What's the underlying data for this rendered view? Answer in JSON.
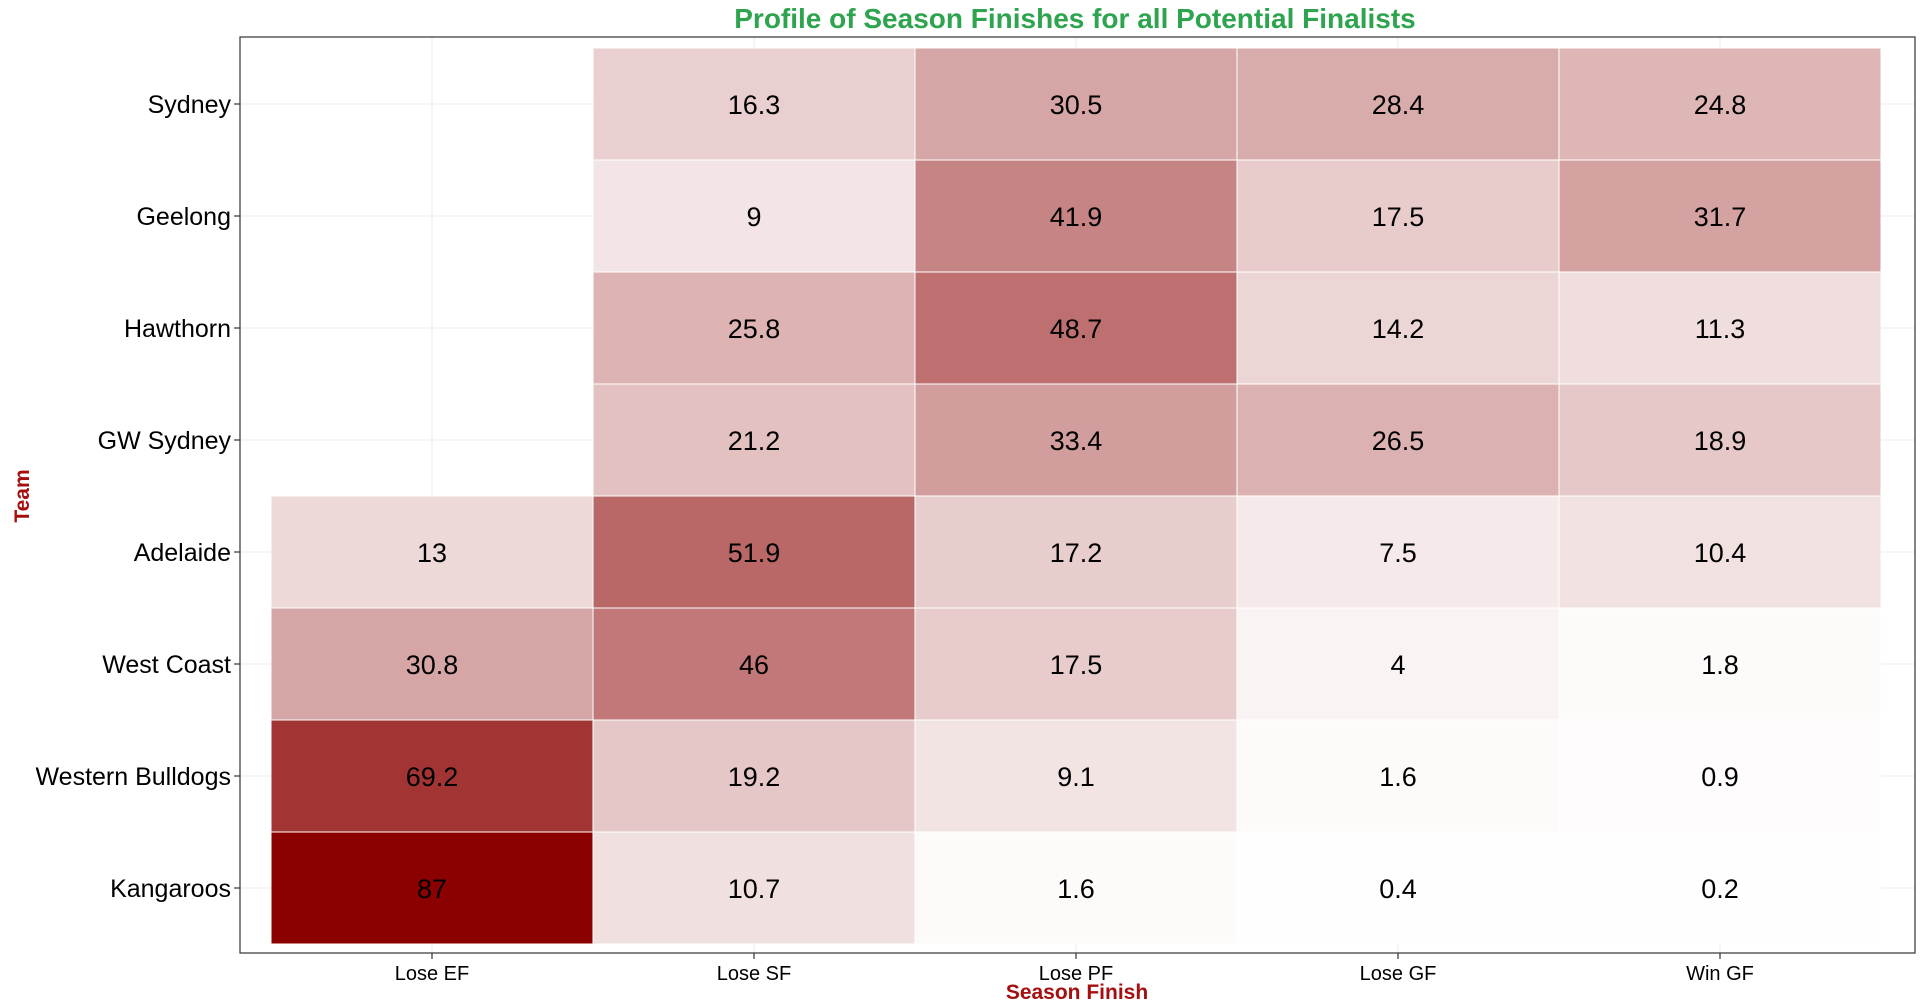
{
  "chart_data": {
    "type": "heatmap",
    "title": "Profile of Season Finishes for all Potential Finalists",
    "xlabel": "Season Finish",
    "ylabel": "Team",
    "x_categories": [
      "Lose EF",
      "Lose SF",
      "Lose PF",
      "Lose GF",
      "Win GF"
    ],
    "y_categories": [
      "Sydney",
      "Geelong",
      "Hawthorn",
      "GW Sydney",
      "Adelaide",
      "West Coast",
      "Western Bulldogs",
      "Kangaroos"
    ],
    "values": [
      [
        null,
        16.3,
        30.5,
        28.4,
        24.8
      ],
      [
        null,
        9,
        41.9,
        17.5,
        31.7
      ],
      [
        null,
        25.8,
        48.7,
        14.2,
        11.3
      ],
      [
        null,
        21.2,
        33.4,
        26.5,
        18.9
      ],
      [
        13,
        51.9,
        17.2,
        7.5,
        10.4
      ],
      [
        30.8,
        46,
        17.5,
        4,
        1.8
      ],
      [
        69.2,
        19.2,
        9.1,
        1.6,
        0.9
      ],
      [
        87,
        10.7,
        1.6,
        0.4,
        0.2
      ]
    ],
    "value_labels": [
      [
        "",
        "16.3",
        "30.5",
        "28.4",
        "24.8"
      ],
      [
        "",
        "9",
        "41.9",
        "17.5",
        "31.7"
      ],
      [
        "",
        "25.8",
        "48.7",
        "14.2",
        "11.3"
      ],
      [
        "",
        "21.2",
        "33.4",
        "26.5",
        "18.9"
      ],
      [
        "13",
        "51.9",
        "17.2",
        "7.5",
        "10.4"
      ],
      [
        "30.8",
        "46",
        "17.5",
        "4",
        "1.8"
      ],
      [
        "69.2",
        "19.2",
        "9.1",
        "1.6",
        "0.9"
      ],
      [
        "87",
        "10.7",
        "1.6",
        "0.4",
        "0.2"
      ]
    ],
    "color_low": "#ffffff",
    "color_high": "#8b0000",
    "value_range": [
      0,
      87
    ],
    "grid": true,
    "legend": "none",
    "title_color": "#2ea44f",
    "axis_title_color": "#a50f0f"
  }
}
